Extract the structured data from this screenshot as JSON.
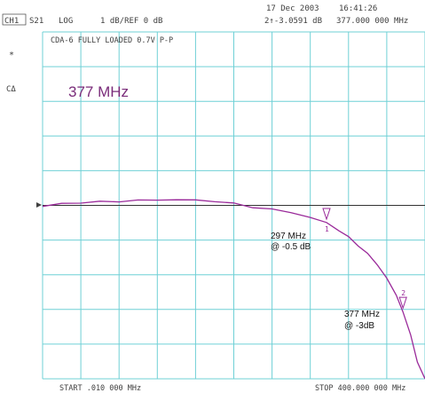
{
  "header": {
    "date": "17 Dec 2003",
    "time": "16:41:26",
    "channel": "CH1",
    "param": "S21",
    "format": "LOG",
    "scale": "1 dB/REF 0 dB",
    "marker_readout_value": "2↑-3.0591 dB",
    "marker_readout_freq": "377.000 000 MHz"
  },
  "side": {
    "star": "*",
    "marker_mode": "CΔ"
  },
  "annotations": {
    "device": "CDA-6 FULLY LOADED 0.7V P-P",
    "big_freq": "377 MHz",
    "m1_line1": "297 MHz",
    "m1_line2": "@ -0.5 dB",
    "m2_line1": "377 MHz",
    "m2_line2": "@ -3dB"
  },
  "footer": {
    "start": "START  .010 000 MHz",
    "stop": "STOP 400.000 000 MHz"
  },
  "colors": {
    "grid": "#6fd0d6",
    "trace": "#9a2a9a",
    "text": "#404040"
  },
  "chart_data": {
    "type": "line",
    "title": "CDA-6 FULLY LOADED 0.7V P-P",
    "xlabel": "",
    "ylabel": "",
    "x_unit": "MHz",
    "y_unit": "dB",
    "xlim": [
      0.01,
      400
    ],
    "ylim": [
      -5,
      5
    ],
    "reference_level": 0,
    "scale_per_div": 1,
    "grid": true,
    "series": [
      {
        "x": [
          0.01,
          20,
          40,
          60,
          80,
          100,
          120,
          140,
          160,
          180,
          200,
          220,
          240,
          260,
          280,
          297,
          310,
          320,
          330,
          340,
          350,
          360,
          370,
          377,
          385,
          392,
          400
        ],
        "y": [
          -0.03,
          0.05,
          0.08,
          0.1,
          0.12,
          0.14,
          0.16,
          0.16,
          0.15,
          0.12,
          0.05,
          -0.05,
          -0.12,
          -0.2,
          -0.35,
          -0.5,
          -0.72,
          -0.92,
          -1.15,
          -1.4,
          -1.7,
          -2.1,
          -2.6,
          -3.06,
          -3.75,
          -4.5,
          -5.0
        ]
      }
    ],
    "markers": [
      {
        "id": "1",
        "x": 297,
        "y": -0.5,
        "label": "297 MHz @ -0.5 dB"
      },
      {
        "id": "2",
        "x": 377,
        "y": -3.06,
        "label": "377 MHz @ -3dB"
      }
    ]
  }
}
